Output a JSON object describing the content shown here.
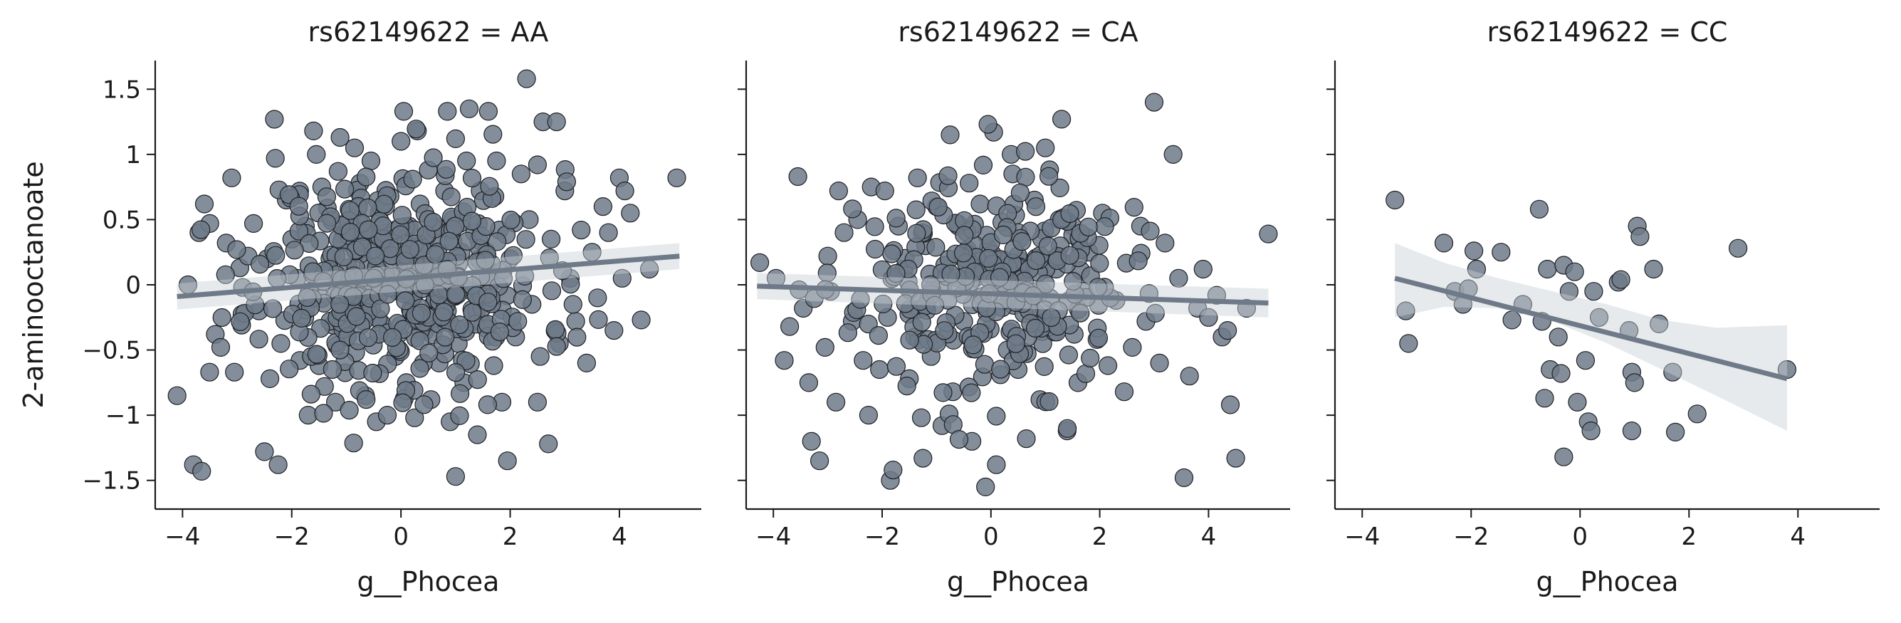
{
  "chart_data": [
    {
      "type": "scatter",
      "title": "rs62149622 = AA",
      "xlabel": "g__Phocea",
      "ylabel": "2-aminooctanoate",
      "xlim": [
        -4.5,
        5.5
      ],
      "ylim": [
        -1.72,
        1.72
      ],
      "xticks": [
        -4,
        -2,
        0,
        2,
        4
      ],
      "yticks": [
        -1.5,
        -1.0,
        -0.5,
        0.0,
        0.5,
        1.0,
        1.5
      ],
      "regression": {
        "x": [
          -4.1,
          5.1
        ],
        "y": [
          -0.09,
          0.22
        ]
      },
      "ci_band": {
        "x": [
          -4.1,
          5.1
        ],
        "lower": [
          -0.19,
          0.12
        ],
        "upper": [
          0.01,
          0.32
        ]
      },
      "points": [
        [
          -4.1,
          -0.85
        ],
        [
          -3.9,
          0.0
        ],
        [
          -3.8,
          -1.38
        ],
        [
          -3.65,
          -1.43
        ],
        [
          -3.7,
          0.4
        ],
        [
          -3.6,
          0.62
        ],
        [
          -3.5,
          0.47
        ],
        [
          -3.4,
          -0.38
        ],
        [
          -3.3,
          -0.48
        ],
        [
          -3.2,
          0.32
        ],
        [
          -3.1,
          0.82
        ],
        [
          -3.05,
          -0.67
        ],
        [
          -2.95,
          0.13
        ],
        [
          -2.8,
          0.22
        ],
        [
          -2.7,
          0.47
        ],
        [
          -2.6,
          -0.2
        ],
        [
          -2.5,
          -1.28
        ],
        [
          -2.45,
          0.2
        ],
        [
          -2.3,
          0.97
        ],
        [
          -2.25,
          -1.38
        ],
        [
          -2.2,
          -0.45
        ],
        [
          -2.1,
          0.65
        ],
        [
          -2.0,
          0.35
        ],
        [
          -1.9,
          0.05
        ],
        [
          -1.85,
          -0.58
        ],
        [
          -1.75,
          0.45
        ],
        [
          -1.7,
          -1.0
        ],
        [
          -1.6,
          1.18
        ],
        [
          -1.55,
          1.0
        ],
        [
          -1.45,
          0.75
        ],
        [
          -1.4,
          -0.78
        ],
        [
          -1.3,
          0.2
        ],
        [
          -1.2,
          -0.9
        ],
        [
          -1.15,
          0.87
        ],
        [
          -1.05,
          0.38
        ],
        [
          -1.0,
          -0.4
        ],
        [
          -0.95,
          0.58
        ],
        [
          -0.85,
          1.05
        ],
        [
          -0.8,
          -0.2
        ],
        [
          -0.75,
          0.78
        ],
        [
          -0.65,
          -0.85
        ],
        [
          -0.6,
          0.15
        ],
        [
          -0.55,
          0.95
        ],
        [
          -0.45,
          -1.05
        ],
        [
          -0.4,
          0.55
        ],
        [
          -0.35,
          -0.3
        ],
        [
          -0.3,
          0.25
        ],
        [
          -0.25,
          -1.0
        ],
        [
          -0.2,
          0.68
        ],
        [
          -0.15,
          0.05
        ],
        [
          -0.1,
          -0.55
        ],
        [
          -0.05,
          0.3
        ],
        [
          0.0,
          1.1
        ],
        [
          0.05,
          1.33
        ],
        [
          0.1,
          -0.75
        ],
        [
          0.15,
          0.45
        ],
        [
          0.2,
          -0.1
        ],
        [
          0.25,
          -1.02
        ],
        [
          0.3,
          1.18
        ],
        [
          0.35,
          0.62
        ],
        [
          0.4,
          0.0
        ],
        [
          0.45,
          -0.35
        ],
        [
          0.5,
          0.88
        ],
        [
          0.55,
          -0.88
        ],
        [
          0.6,
          0.35
        ],
        [
          0.7,
          -0.6
        ],
        [
          0.75,
          0.15
        ],
        [
          0.8,
          0.72
        ],
        [
          0.85,
          -0.2
        ],
        [
          0.9,
          -1.05
        ],
        [
          0.95,
          0.5
        ],
        [
          1.0,
          1.12
        ],
        [
          1.05,
          -0.45
        ],
        [
          1.1,
          0.25
        ],
        [
          1.15,
          -0.75
        ],
        [
          1.2,
          0.95
        ],
        [
          1.25,
          1.35
        ],
        [
          1.3,
          -0.05
        ],
        [
          1.35,
          0.4
        ],
        [
          1.4,
          -1.15
        ],
        [
          1.45,
          0.72
        ],
        [
          1.5,
          -0.3
        ],
        [
          1.6,
          1.33
        ],
        [
          1.65,
          0.1
        ],
        [
          1.7,
          -0.62
        ],
        [
          1.75,
          0.95
        ],
        [
          1.8,
          0.42
        ],
        [
          1.85,
          -0.9
        ],
        [
          1.95,
          -1.35
        ],
        [
          2.0,
          0.2
        ],
        [
          2.1,
          -0.4
        ],
        [
          2.2,
          0.85
        ],
        [
          2.3,
          1.58
        ],
        [
          2.35,
          0.5
        ],
        [
          2.4,
          -0.15
        ],
        [
          2.5,
          0.92
        ],
        [
          2.55,
          -0.55
        ],
        [
          2.6,
          1.25
        ],
        [
          2.7,
          -1.22
        ],
        [
          2.75,
          0.35
        ],
        [
          2.85,
          1.25
        ],
        [
          2.9,
          -0.45
        ],
        [
          3.0,
          0.72
        ],
        [
          3.1,
          0.05
        ],
        [
          3.2,
          -0.28
        ],
        [
          3.3,
          0.42
        ],
        [
          3.4,
          -0.6
        ],
        [
          3.5,
          0.25
        ],
        [
          3.6,
          -0.1
        ],
        [
          3.7,
          0.6
        ],
        [
          3.8,
          0.4
        ],
        [
          3.9,
          -0.35
        ],
        [
          4.0,
          0.82
        ],
        [
          4.05,
          0.05
        ],
        [
          4.1,
          0.72
        ],
        [
          4.2,
          0.55
        ],
        [
          4.4,
          -0.27
        ],
        [
          4.55,
          0.12
        ],
        [
          5.05,
          0.82
        ],
        [
          1.0,
          -1.47
        ],
        [
          0.85,
          1.33
        ],
        [
          -1.5,
          -0.62
        ],
        [
          -2.9,
          -0.02
        ],
        [
          -2.4,
          -0.72
        ],
        [
          3.15,
          -0.15
        ],
        [
          2.5,
          -0.9
        ]
      ],
      "dense_cluster": {
        "count": 420,
        "x_center": 0.0,
        "x_sd": 1.3,
        "y_center": 0.05,
        "y_sd": 0.42,
        "seed": 11
      }
    },
    {
      "type": "scatter",
      "title": "rs62149622 = CA",
      "xlabel": "g__Phocea",
      "ylabel": "",
      "xlim": [
        -4.5,
        5.5
      ],
      "ylim": [
        -1.72,
        1.72
      ],
      "xticks": [
        -4,
        -2,
        0,
        2,
        4
      ],
      "yticks": [
        -1.5,
        -1.0,
        -0.5,
        0.0,
        0.5,
        1.0,
        1.5
      ],
      "regression": {
        "x": [
          -4.3,
          5.1
        ],
        "y": [
          -0.01,
          -0.14
        ]
      },
      "ci_band": {
        "x": [
          -4.3,
          5.1
        ],
        "lower": [
          -0.11,
          -0.25
        ],
        "upper": [
          0.09,
          -0.03
        ]
      },
      "points": [
        [
          -4.25,
          0.17
        ],
        [
          -3.95,
          0.05
        ],
        [
          -3.8,
          -0.58
        ],
        [
          -3.7,
          -0.32
        ],
        [
          -3.55,
          0.83
        ],
        [
          -3.45,
          -0.18
        ],
        [
          -3.35,
          -0.75
        ],
        [
          -3.3,
          -1.2
        ],
        [
          -3.15,
          -1.35
        ],
        [
          -3.05,
          -0.48
        ],
        [
          -3.0,
          0.22
        ],
        [
          -2.95,
          -0.05
        ],
        [
          -2.85,
          -0.9
        ],
        [
          -2.8,
          0.72
        ],
        [
          -2.7,
          0.4
        ],
        [
          -2.55,
          -0.28
        ],
        [
          -2.45,
          0.5
        ],
        [
          -2.35,
          -0.58
        ],
        [
          -2.25,
          -1.0
        ],
        [
          -2.2,
          0.75
        ],
        [
          -2.05,
          -0.65
        ],
        [
          -1.95,
          0.72
        ],
        [
          -1.9,
          -0.25
        ],
        [
          -1.85,
          -1.5
        ],
        [
          -1.8,
          -1.42
        ],
        [
          -1.7,
          0.45
        ],
        [
          -1.6,
          0.12
        ],
        [
          -1.5,
          -0.72
        ],
        [
          -1.4,
          -0.4
        ],
        [
          -1.35,
          0.82
        ],
        [
          -1.25,
          -1.33
        ],
        [
          -1.2,
          0.3
        ],
        [
          -1.1,
          -0.55
        ],
        [
          -1.0,
          0.6
        ],
        [
          -0.9,
          -1.08
        ],
        [
          -0.85,
          0.15
        ],
        [
          -0.75,
          1.15
        ],
        [
          -0.7,
          -0.82
        ],
        [
          -0.6,
          0.45
        ],
        [
          -0.5,
          -0.28
        ],
        [
          -0.4,
          0.78
        ],
        [
          -0.35,
          -1.2
        ],
        [
          -0.3,
          0.05
        ],
        [
          -0.2,
          0.62
        ],
        [
          -0.1,
          -1.55
        ],
        [
          -0.05,
          0.28
        ],
        [
          0.05,
          1.17
        ],
        [
          0.1,
          -1.38
        ],
        [
          0.2,
          0.48
        ],
        [
          0.3,
          -0.5
        ],
        [
          0.4,
          0.85
        ],
        [
          0.5,
          -0.65
        ],
        [
          0.55,
          0.18
        ],
        [
          0.65,
          -1.18
        ],
        [
          0.8,
          0.65
        ],
        [
          0.9,
          -0.88
        ],
        [
          1.0,
          1.05
        ],
        [
          1.1,
          -0.3
        ],
        [
          1.2,
          0.12
        ],
        [
          1.3,
          1.27
        ],
        [
          1.4,
          -1.12
        ],
        [
          1.5,
          0.45
        ],
        [
          1.6,
          -0.75
        ],
        [
          1.7,
          -0.05
        ],
        [
          1.8,
          0.25
        ],
        [
          1.95,
          -0.42
        ],
        [
          2.05,
          0.55
        ],
        [
          2.15,
          -0.62
        ],
        [
          2.3,
          -0.12
        ],
        [
          2.45,
          -0.82
        ],
        [
          2.6,
          -0.48
        ],
        [
          2.75,
          0.45
        ],
        [
          2.85,
          -0.28
        ],
        [
          3.0,
          1.4
        ],
        [
          3.1,
          -0.6
        ],
        [
          3.2,
          0.32
        ],
        [
          3.35,
          1.0
        ],
        [
          3.45,
          0.05
        ],
        [
          3.55,
          -1.48
        ],
        [
          3.65,
          -0.7
        ],
        [
          3.8,
          -0.18
        ],
        [
          3.9,
          0.12
        ],
        [
          4.0,
          -0.25
        ],
        [
          4.15,
          -0.08
        ],
        [
          4.25,
          -0.4
        ],
        [
          4.4,
          -0.92
        ],
        [
          4.5,
          -1.33
        ],
        [
          4.7,
          -0.18
        ],
        [
          5.1,
          0.39
        ],
        [
          4.35,
          -0.35
        ]
      ],
      "dense_cluster": {
        "count": 290,
        "x_center": 0.0,
        "x_sd": 1.2,
        "y_center": 0.0,
        "y_sd": 0.4,
        "seed": 23
      }
    },
    {
      "type": "scatter",
      "title": "rs62149622 = CC",
      "xlabel": "g__Phocea",
      "ylabel": "",
      "xlim": [
        -4.5,
        5.5
      ],
      "ylim": [
        -1.72,
        1.72
      ],
      "xticks": [
        -4,
        -2,
        0,
        2,
        4
      ],
      "yticks": [
        -1.5,
        -1.0,
        -0.5,
        0.0,
        0.5,
        1.0,
        1.5
      ],
      "regression": {
        "x": [
          -3.4,
          3.8
        ],
        "y": [
          0.05,
          -0.72
        ]
      },
      "ci_band": {
        "x": [
          -3.4,
          -2.5,
          -1.5,
          -0.5,
          0.5,
          1.5,
          2.5,
          3.8
        ],
        "lower": [
          -0.25,
          -0.17,
          -0.18,
          -0.28,
          -0.45,
          -0.65,
          -0.85,
          -1.12
        ],
        "upper": [
          0.32,
          0.17,
          0.05,
          -0.05,
          -0.15,
          -0.27,
          -0.33,
          -0.31
        ]
      },
      "points": [
        [
          -3.4,
          0.65
        ],
        [
          -3.2,
          -0.2
        ],
        [
          -3.15,
          -0.45
        ],
        [
          -2.5,
          0.32
        ],
        [
          -2.3,
          -0.05
        ],
        [
          -2.15,
          -0.15
        ],
        [
          -2.05,
          -0.03
        ],
        [
          -1.95,
          0.26
        ],
        [
          -1.9,
          0.12
        ],
        [
          -1.45,
          0.25
        ],
        [
          -1.25,
          -0.27
        ],
        [
          -1.05,
          -0.15
        ],
        [
          -0.75,
          0.58
        ],
        [
          -0.7,
          -0.28
        ],
        [
          -0.65,
          -0.87
        ],
        [
          -0.6,
          0.12
        ],
        [
          -0.55,
          -0.65
        ],
        [
          -0.4,
          -0.4
        ],
        [
          -0.35,
          -0.68
        ],
        [
          -0.3,
          -1.32
        ],
        [
          -0.3,
          0.15
        ],
        [
          -0.2,
          -0.05
        ],
        [
          -0.1,
          0.1
        ],
        [
          -0.05,
          -0.9
        ],
        [
          0.1,
          -0.58
        ],
        [
          0.15,
          -1.05
        ],
        [
          0.2,
          -1.12
        ],
        [
          0.25,
          -0.05
        ],
        [
          0.35,
          -0.25
        ],
        [
          0.7,
          0.02
        ],
        [
          0.75,
          0.04
        ],
        [
          0.9,
          -0.35
        ],
        [
          0.95,
          -0.67
        ],
        [
          1.0,
          -0.75
        ],
        [
          0.95,
          -1.12
        ],
        [
          1.05,
          0.45
        ],
        [
          1.1,
          0.37
        ],
        [
          1.35,
          0.12
        ],
        [
          1.45,
          -0.3
        ],
        [
          1.7,
          -0.67
        ],
        [
          1.75,
          -1.13
        ],
        [
          2.15,
          -0.99
        ],
        [
          2.9,
          0.28
        ],
        [
          3.8,
          -0.65
        ]
      ]
    }
  ]
}
